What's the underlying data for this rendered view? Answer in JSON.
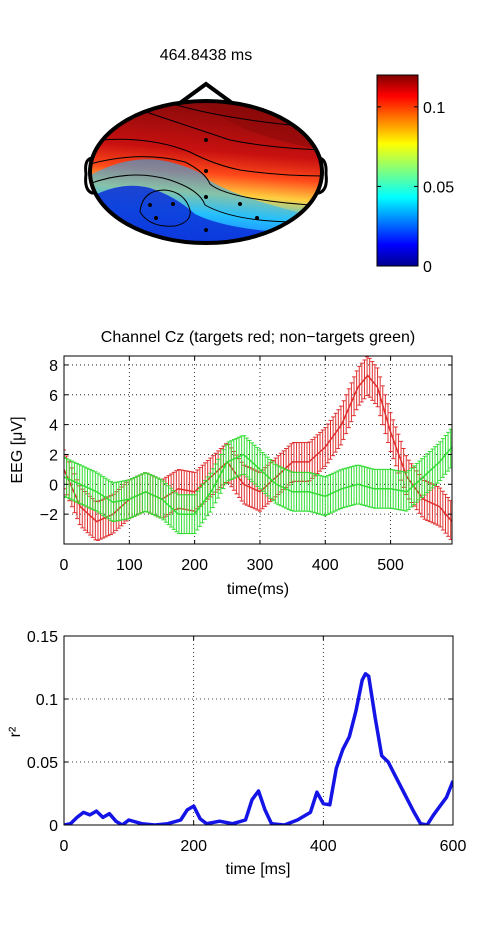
{
  "chart_data": [
    {
      "type": "heatmap",
      "title": "464.8438 ms",
      "colorbar": {
        "range": [
          0,
          0.12
        ],
        "ticks": [
          0,
          0.05,
          0.1
        ],
        "tick_labels": [
          "0",
          "0.05",
          "0.1"
        ],
        "colormap": "jet"
      },
      "electrodes": 9
    },
    {
      "type": "line",
      "title": "Channel Cz  (targets red; non−targets green)",
      "xlabel": "time(ms)",
      "ylabel": "EEG [μV]",
      "xlim": [
        0,
        594
      ],
      "ylim": [
        -4,
        8.6
      ],
      "xticks": [
        0,
        100,
        200,
        300,
        400,
        500
      ],
      "yticks": [
        -2,
        0,
        2,
        4,
        6,
        8
      ],
      "ytick_labels": [
        "−2",
        "0",
        "2",
        "4",
        "6",
        "8"
      ],
      "grid": true,
      "error_bars": 1.3,
      "series": [
        {
          "color": "#e03030",
          "x": [
            0,
            25,
            50,
            75,
            100,
            125,
            150,
            175,
            200,
            225,
            250,
            275,
            300,
            325,
            350,
            375,
            400,
            425,
            450,
            465,
            480,
            500,
            525,
            550,
            575,
            594
          ],
          "y": [
            1.0,
            -1.5,
            -2.5,
            -2.0,
            -1.0,
            -0.5,
            -1.0,
            -0.3,
            -0.5,
            0.5,
            1.5,
            0.0,
            -0.5,
            0.5,
            1.5,
            1.5,
            2.5,
            4.0,
            6.5,
            7.3,
            6.5,
            3.5,
            0.5,
            -1.0,
            -1.5,
            -2.5
          ]
        },
        {
          "color": "#33dd33",
          "x": [
            0,
            25,
            50,
            75,
            100,
            125,
            150,
            175,
            200,
            225,
            250,
            275,
            300,
            325,
            350,
            375,
            400,
            425,
            450,
            475,
            500,
            525,
            550,
            575,
            594
          ],
          "y": [
            0.5,
            0.0,
            -0.5,
            -1.2,
            -1.0,
            -0.5,
            -1.0,
            -2.0,
            -2.0,
            -0.5,
            1.5,
            2.0,
            1.0,
            0.0,
            -0.5,
            -0.5,
            -0.8,
            -0.3,
            0.0,
            -0.3,
            -0.3,
            -0.5,
            0.5,
            1.5,
            2.5
          ]
        }
      ]
    },
    {
      "type": "line",
      "xlabel": "time [ms]",
      "ylabel": "r²",
      "xlim": [
        0,
        600
      ],
      "ylim": [
        0,
        0.15
      ],
      "xticks": [
        0,
        200,
        400,
        600
      ],
      "yticks": [
        0,
        0.05,
        0.1,
        0.15
      ],
      "ytick_labels": [
        "0",
        "0.05",
        "0.1",
        "0.15"
      ],
      "grid": true,
      "series": [
        {
          "color": "#1414e6",
          "x": [
            0,
            10,
            20,
            30,
            40,
            50,
            60,
            70,
            80,
            90,
            100,
            120,
            140,
            160,
            180,
            190,
            200,
            210,
            220,
            240,
            260,
            280,
            290,
            300,
            310,
            320,
            340,
            360,
            380,
            390,
            400,
            410,
            420,
            430,
            440,
            450,
            460,
            465,
            470,
            480,
            490,
            500,
            510,
            520,
            530,
            540,
            550,
            560,
            570,
            580,
            590,
            600
          ],
          "y": [
            0.0,
            0.001,
            0.006,
            0.01,
            0.008,
            0.011,
            0.006,
            0.009,
            0.003,
            0.0,
            0.004,
            0.001,
            0.0,
            0.001,
            0.004,
            0.012,
            0.015,
            0.005,
            0.001,
            0.003,
            0.001,
            0.004,
            0.02,
            0.027,
            0.012,
            0.001,
            0.0,
            0.004,
            0.01,
            0.026,
            0.017,
            0.016,
            0.045,
            0.06,
            0.07,
            0.09,
            0.115,
            0.12,
            0.118,
            0.085,
            0.055,
            0.05,
            0.04,
            0.03,
            0.02,
            0.01,
            0.001,
            0.0,
            0.008,
            0.015,
            0.022,
            0.035
          ]
        }
      ]
    }
  ]
}
